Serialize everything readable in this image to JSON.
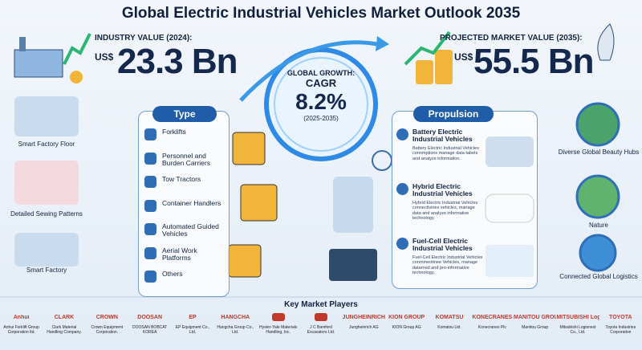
{
  "header": {
    "title": "Global Electric Industrial Vehicles Market Outlook 2035"
  },
  "stats": {
    "industry": {
      "label": "INDUSTRY VALUE (2024):",
      "currency": "US$",
      "value": "23.3 Bn"
    },
    "growth": {
      "label": "GLOBAL GROWTH:",
      "metric": "CAGR",
      "value": "8.2%",
      "period": "(2025-2035)"
    },
    "projected": {
      "label": "PROJECTED MARKET VALUE (2035):",
      "currency": "US$",
      "value": "55.5 Bn"
    }
  },
  "left_labels": [
    "Smart Factory Floor",
    "Detailed Sewing Patterns",
    "Smart Factory"
  ],
  "type_panel": {
    "title": "Type",
    "items": [
      "Forklifts",
      "Personnel and Burden Carriers",
      "Tow Tractors",
      "Container Handlers",
      "Automated Guided Vehicles",
      "Aerial Work Platforms",
      "Others"
    ]
  },
  "propulsion_panel": {
    "title": "Propulsion",
    "items": [
      {
        "title": "Battery Electric Industrial Vehicles",
        "description": "Battery Electric Industrial Vehicles connmptions manage data tabets and analyze information."
      },
      {
        "title": "Hybrid Electric Industrial Vehicles",
        "description": "Hybrid Electric Industrial Vehicles connectivines vehicles, manage data and analyze informative technology."
      },
      {
        "title": "Fuel-Cell Electric Industrial Vehicles",
        "description": "Fuel-Cell Electric Industrial Vehicles conmmeotinee Vehicles, manage datarned and pro-informative technology."
      }
    ]
  },
  "right_labels": [
    "Diverse Global Beauty Hubs",
    "Nature",
    "Connected Global Logistics"
  ],
  "players": {
    "title": "Key Market Players",
    "items": [
      {
        "logo": "Anhui",
        "name": "Anhui Forklift Group Corporation ltd."
      },
      {
        "logo": "CLARK",
        "name": "Clark Material Handling Company."
      },
      {
        "logo": "CROWN",
        "name": "Crown Equipment Corporation."
      },
      {
        "logo": "DOOSAN",
        "name": "DOOSAN BOBCAT KOREA"
      },
      {
        "logo": "EP",
        "name": "EP Equipment Co., Ltd."
      },
      {
        "logo": "HANGCHA",
        "name": "Hangcha Group Co., Ltd."
      },
      {
        "name": "Hyster-Yale Materials Handling, Inc."
      },
      {
        "name": "J C Bamford Excavators Ltd."
      },
      {
        "logo": "JUNGHEINRICH",
        "name": "Jungheinrich AG"
      },
      {
        "logo": "KION GROUP",
        "name": "KION Group AG"
      },
      {
        "logo": "KOMATSU",
        "name": "Komatsu Ltd."
      },
      {
        "logo": "KONECRANES",
        "name": "Konecranes Plc"
      },
      {
        "logo": "MANITOU GROUP",
        "name": "Manitou Group"
      },
      {
        "logo": "MITSUBISHI Logisnext",
        "name": "Mitsubishi Logisnext Co., Ltd."
      },
      {
        "logo": "TOYOTA",
        "name": "Toyota Industries Corporation"
      }
    ]
  }
}
